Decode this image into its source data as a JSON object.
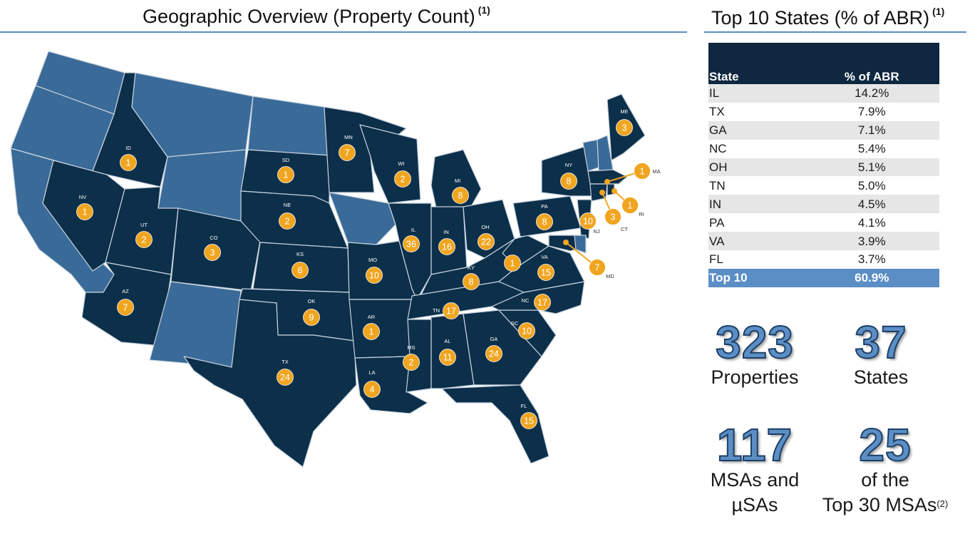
{
  "map": {
    "title": "Geographic Overview (Property Count)",
    "title_note": "(1)",
    "colors": {
      "has_properties": "#0c2f4a",
      "no_properties": "#3a6a97",
      "marker": "#f0a520",
      "border": "#c8d4e0"
    },
    "markers": [
      {
        "state": "WA",
        "count": null
      },
      {
        "state": "OR",
        "count": null
      },
      {
        "state": "CA",
        "count": null
      },
      {
        "state": "MT",
        "count": null
      },
      {
        "state": "WY",
        "count": null
      },
      {
        "state": "ND",
        "count": null
      },
      {
        "state": "NM",
        "count": null
      },
      {
        "state": "IA",
        "count": null
      },
      {
        "state": "VT",
        "count": null
      },
      {
        "state": "NH",
        "count": null
      },
      {
        "state": "DE",
        "count": null
      },
      {
        "state": "ID",
        "count": 1
      },
      {
        "state": "NV",
        "count": 1
      },
      {
        "state": "UT",
        "count": 2
      },
      {
        "state": "AZ",
        "count": 7
      },
      {
        "state": "CO",
        "count": 3
      },
      {
        "state": "SD",
        "count": 1
      },
      {
        "state": "NE",
        "count": 2
      },
      {
        "state": "KS",
        "count": 6
      },
      {
        "state": "OK",
        "count": 9
      },
      {
        "state": "TX",
        "count": 24
      },
      {
        "state": "MN",
        "count": 7
      },
      {
        "state": "WI",
        "count": 2
      },
      {
        "state": "MI",
        "count": 8
      },
      {
        "state": "MO",
        "count": 10
      },
      {
        "state": "AR",
        "count": 1
      },
      {
        "state": "LA",
        "count": 4
      },
      {
        "state": "IL",
        "count": 36
      },
      {
        "state": "IN",
        "count": 16
      },
      {
        "state": "OH",
        "count": 22
      },
      {
        "state": "KY",
        "count": 8
      },
      {
        "state": "TN",
        "count": 17
      },
      {
        "state": "MS",
        "count": 2
      },
      {
        "state": "AL",
        "count": 11
      },
      {
        "state": "GA",
        "count": 24
      },
      {
        "state": "FL",
        "count": 15
      },
      {
        "state": "SC",
        "count": 10
      },
      {
        "state": "NC",
        "count": 17
      },
      {
        "state": "VA",
        "count": 15
      },
      {
        "state": "WV",
        "count": 1
      },
      {
        "state": "PA",
        "count": 8
      },
      {
        "state": "NY",
        "count": 8
      },
      {
        "state": "NJ",
        "count": 10
      },
      {
        "state": "MD",
        "count": 7
      },
      {
        "state": "CT",
        "count": 3
      },
      {
        "state": "RI",
        "count": 1
      },
      {
        "state": "MA",
        "count": 1
      },
      {
        "state": "ME",
        "count": 3
      }
    ]
  },
  "table": {
    "title": "Top 10 States (% of ABR)",
    "title_note": "(1)",
    "headers": [
      "State",
      "% of ABR"
    ],
    "rows": [
      [
        "IL",
        "14.2%"
      ],
      [
        "TX",
        "7.9%"
      ],
      [
        "GA",
        "7.1%"
      ],
      [
        "NC",
        "5.4%"
      ],
      [
        "OH",
        "5.1%"
      ],
      [
        "TN",
        "5.0%"
      ],
      [
        "IN",
        "4.5%"
      ],
      [
        "PA",
        "4.1%"
      ],
      [
        "VA",
        "3.9%"
      ],
      [
        "FL",
        "3.7%"
      ]
    ],
    "total": [
      "Top 10",
      "60.9%"
    ]
  },
  "stats": {
    "properties": {
      "value": "323",
      "label": "Properties"
    },
    "states": {
      "value": "37",
      "label": "States"
    },
    "msas": {
      "value": "117",
      "label_line1": "MSAs and",
      "label_line2": "µSAs"
    },
    "top30": {
      "value": "25",
      "label_line1": "of the",
      "label_line2": "Top 30 MSAs",
      "note": "(2)"
    }
  }
}
